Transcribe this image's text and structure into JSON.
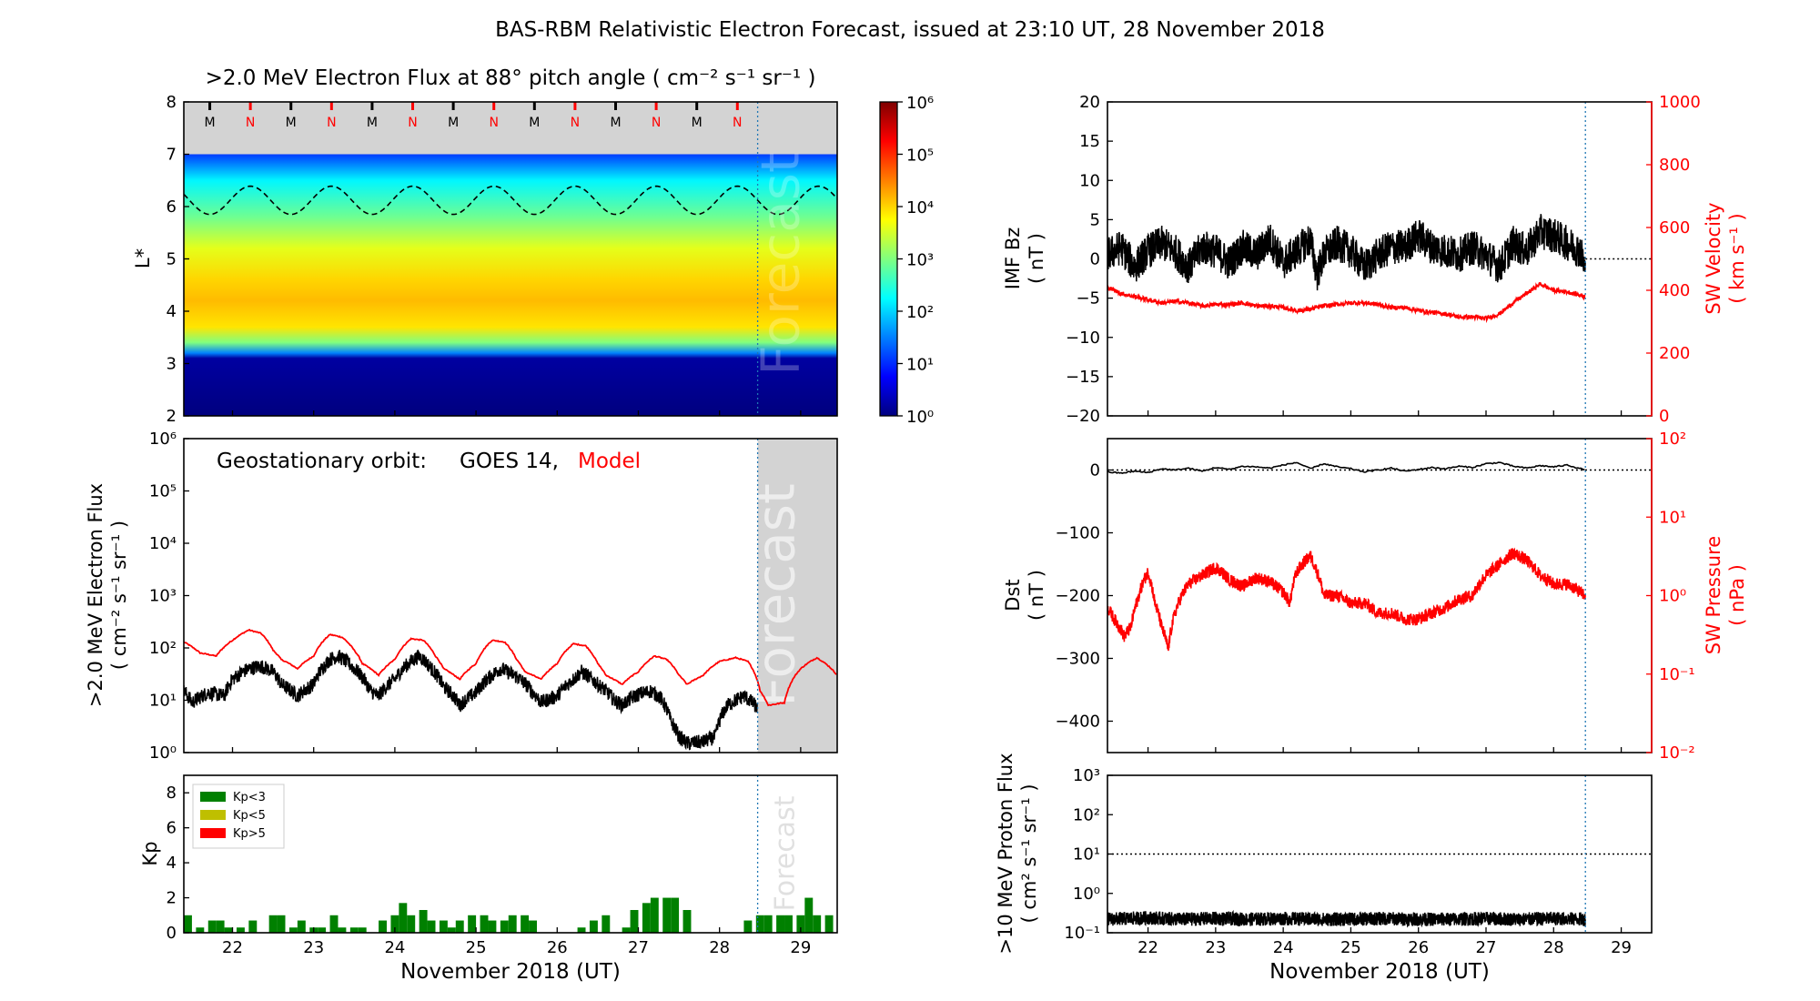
{
  "title": "BAS-RBM Relativistic Electron Forecast, issued at 23:10 UT, 28 November 2018",
  "colors": {
    "model": "#ff0000",
    "observed": "#000000",
    "kp_low": "#008000",
    "kp_mid": "#bfbf00",
    "kp_high": "#ff0000",
    "forecast_bg": "#d3d3d3",
    "vline": "#1f77b4"
  },
  "x_axis": {
    "ticks": [
      "22",
      "23",
      "24",
      "25",
      "26",
      "27",
      "28",
      "29"
    ],
    "xlabel": "November 2018 (UT)",
    "xlim": [
      21.4,
      29.45
    ],
    "issue_time": 28.47
  },
  "left_x_axis": {
    "xlim": [
      21.4,
      29.45
    ]
  },
  "right_x_axis": {
    "xlim": [
      21.4,
      29.45
    ]
  },
  "forecast_label": "Forecast",
  "chart_data": [
    {
      "id": "lstar_flux",
      "type": "heatmap",
      "title": ">2.0 MeV Electron Flux at 88° pitch angle ( cm⁻² s⁻¹ sr⁻¹ )",
      "ylabel": "L*",
      "ylim": [
        2,
        8
      ],
      "yticks": [
        "2",
        "3",
        "4",
        "5",
        "6",
        "7",
        "8"
      ],
      "colorbar": {
        "scale": "log",
        "range": [
          1,
          1000000
        ],
        "ticklabels": [
          "10⁰",
          "10¹",
          "10²",
          "10³",
          "10⁴",
          "10⁵",
          "10⁶"
        ]
      },
      "flux_profile": [
        {
          "L": 2.0,
          "log_flux": 0.0
        },
        {
          "L": 3.1,
          "log_flux": 0.2
        },
        {
          "L": 3.2,
          "log_flux": 1.5
        },
        {
          "L": 3.4,
          "log_flux": 3.0
        },
        {
          "L": 3.7,
          "log_flux": 3.9
        },
        {
          "L": 4.2,
          "log_flux": 4.15
        },
        {
          "L": 4.6,
          "log_flux": 4.0
        },
        {
          "L": 5.2,
          "log_flux": 3.6
        },
        {
          "L": 5.8,
          "log_flux": 2.9
        },
        {
          "L": 6.5,
          "log_flux": 2.2
        },
        {
          "L": 7.0,
          "log_flux": 1.1
        }
      ],
      "magnetopause_markers": {
        "labels": [
          "M",
          "N",
          "M",
          "N",
          "M",
          "N",
          "M",
          "N",
          "M",
          "N",
          "M",
          "N",
          "M",
          "N"
        ],
        "times": [
          21.72,
          22.22,
          22.72,
          23.22,
          23.72,
          24.22,
          24.72,
          25.22,
          25.72,
          26.22,
          26.72,
          27.22,
          27.72,
          28.22
        ],
        "colors": [
          "#000000",
          "#ff0000",
          "#000000",
          "#ff0000",
          "#000000",
          "#ff0000",
          "#000000",
          "#ff0000",
          "#000000",
          "#ff0000",
          "#000000",
          "#ff0000",
          "#000000",
          "#ff0000"
        ]
      },
      "geo_orbit_lstar": {
        "mean": 6.12,
        "amplitude": 0.27,
        "period_days": 1.0,
        "phase_day": 22.22
      }
    },
    {
      "id": "geo_flux",
      "type": "line",
      "ylabel": ">2.0 MeV Electron Flux ( cm⁻² s⁻¹ sr⁻¹ )",
      "yscale": "log",
      "ylim": [
        1,
        1000000
      ],
      "yticklabels": [
        "10⁰",
        "10¹",
        "10²",
        "10³",
        "10⁴",
        "10⁵",
        "10⁶"
      ],
      "legend": {
        "prefix": "Geostationary orbit:",
        "observed": "GOES 14,",
        "model": "Model"
      },
      "series": [
        {
          "name": "Model",
          "color": "#ff0000",
          "x": [
            21.4,
            21.6,
            21.8,
            22.0,
            22.2,
            22.35,
            22.5,
            22.6,
            22.8,
            23.0,
            23.2,
            23.35,
            23.5,
            23.6,
            23.8,
            24.0,
            24.2,
            24.35,
            24.5,
            24.6,
            24.8,
            25.0,
            25.2,
            25.35,
            25.5,
            25.6,
            25.8,
            26.0,
            26.2,
            26.35,
            26.5,
            26.6,
            26.8,
            27.0,
            27.2,
            27.35,
            27.5,
            27.6,
            27.8,
            28.0,
            28.2,
            28.35,
            28.5,
            28.6,
            28.8,
            29.0,
            29.2,
            29.45
          ],
          "values": [
            130,
            80,
            70,
            140,
            220,
            190,
            90,
            60,
            40,
            70,
            180,
            160,
            90,
            50,
            30,
            60,
            150,
            140,
            70,
            40,
            25,
            50,
            140,
            130,
            60,
            35,
            25,
            50,
            120,
            110,
            50,
            30,
            20,
            35,
            70,
            60,
            30,
            20,
            30,
            55,
            65,
            55,
            15,
            8,
            9,
            40,
            65,
            30
          ]
        },
        {
          "name": "GOES 14",
          "color": "#000000",
          "x": [
            21.4,
            21.5,
            21.7,
            21.9,
            22.0,
            22.2,
            22.35,
            22.5,
            22.6,
            22.8,
            23.0,
            23.2,
            23.3,
            23.5,
            23.7,
            23.8,
            24.0,
            24.2,
            24.3,
            24.45,
            24.6,
            24.8,
            25.0,
            25.2,
            25.3,
            25.5,
            25.7,
            25.8,
            26.0,
            26.2,
            26.3,
            26.5,
            26.7,
            26.8,
            27.0,
            27.15,
            27.25,
            27.4,
            27.5,
            27.6,
            27.8,
            27.95,
            28.1,
            28.3,
            28.47
          ],
          "values": [
            15,
            9,
            14,
            12,
            25,
            40,
            45,
            35,
            20,
            12,
            20,
            60,
            70,
            40,
            15,
            12,
            25,
            55,
            70,
            40,
            18,
            8,
            14,
            30,
            40,
            28,
            14,
            9,
            12,
            25,
            35,
            20,
            10,
            8,
            13,
            15,
            12,
            4,
            2,
            1.5,
            1.6,
            2,
            8,
            12,
            7
          ]
        }
      ]
    },
    {
      "id": "kp",
      "type": "bar",
      "ylabel": "Kp",
      "ylim": [
        0,
        9
      ],
      "yticks": [
        "0",
        "2",
        "4",
        "6",
        "8"
      ],
      "legend": [
        "Kp<3",
        "Kp<5",
        "Kp>5"
      ],
      "bar_width_days": 0.1,
      "x": [
        21.45,
        21.6,
        21.75,
        21.85,
        21.95,
        22.1,
        22.25,
        22.5,
        22.6,
        22.75,
        22.85,
        23.0,
        23.1,
        23.25,
        23.35,
        23.5,
        23.6,
        23.85,
        24.0,
        24.1,
        24.2,
        24.35,
        24.45,
        24.6,
        24.7,
        24.8,
        24.95,
        25.1,
        25.2,
        25.35,
        25.45,
        25.6,
        25.7,
        26.3,
        26.45,
        26.6,
        26.85,
        26.95,
        27.1,
        27.2,
        27.35,
        27.45,
        27.6,
        28.35,
        28.5,
        28.6,
        28.75,
        28.85,
        29.0,
        29.1,
        29.2,
        29.35
      ],
      "values": [
        1.0,
        0.3,
        0.7,
        0.7,
        0.3,
        0.3,
        0.7,
        1.0,
        1.0,
        0.3,
        0.7,
        0.3,
        0.3,
        1.0,
        0.3,
        0.3,
        0.3,
        0.7,
        1.0,
        1.7,
        1.0,
        1.3,
        0.7,
        0.7,
        0.3,
        0.7,
        1.0,
        1.0,
        0.7,
        0.7,
        1.0,
        1.0,
        0.7,
        0.3,
        0.7,
        1.0,
        0.3,
        1.3,
        1.7,
        2.0,
        2.0,
        2.0,
        1.3,
        0.7,
        1.0,
        1.0,
        1.0,
        1.0,
        1.0,
        2.0,
        1.0,
        1.0
      ]
    },
    {
      "id": "imf_sw",
      "type": "line",
      "ylabel": "IMF Bz ( nT )",
      "ylim": [
        -20,
        20
      ],
      "yticks": [
        "−20",
        "−15",
        "−10",
        "−5",
        "0",
        "5",
        "10",
        "15",
        "20"
      ],
      "y2label": "SW Velocity ( km s⁻¹ )",
      "y2lim": [
        0,
        1000
      ],
      "y2ticks": [
        "0",
        "200",
        "400",
        "600",
        "800",
        "1000"
      ],
      "series": [
        {
          "name": "IMF Bz",
          "color": "#000000",
          "x": [
            21.4,
            21.6,
            21.8,
            22.0,
            22.2,
            22.4,
            22.6,
            22.8,
            23.0,
            23.2,
            23.4,
            23.6,
            23.8,
            24.0,
            24.2,
            24.4,
            24.5,
            24.6,
            24.8,
            25.0,
            25.2,
            25.4,
            25.6,
            25.8,
            26.0,
            26.2,
            26.4,
            26.6,
            26.8,
            27.0,
            27.2,
            27.4,
            27.6,
            27.8,
            28.0,
            28.2,
            28.4,
            28.47
          ],
          "values": [
            0.5,
            1.5,
            -1.0,
            1.0,
            2.0,
            1.0,
            -1.0,
            1.5,
            1.0,
            -0.5,
            1.5,
            0.5,
            2.5,
            -0.5,
            1.0,
            2.5,
            -2.0,
            0.5,
            2.0,
            1.0,
            -1.0,
            0.5,
            1.5,
            1.5,
            3.0,
            1.5,
            1.0,
            0.5,
            1.5,
            0.5,
            -1.0,
            2.0,
            1.0,
            3.5,
            3.0,
            2.0,
            1.0,
            -1.5
          ]
        },
        {
          "name": "SW Velocity",
          "color": "#ff0000",
          "axis": "y2",
          "x": [
            21.4,
            21.6,
            21.8,
            22.0,
            22.2,
            22.4,
            22.6,
            22.8,
            23.0,
            23.2,
            23.4,
            23.6,
            23.8,
            24.0,
            24.2,
            24.4,
            24.6,
            24.8,
            25.0,
            25.2,
            25.4,
            25.6,
            25.8,
            26.0,
            26.2,
            26.4,
            26.6,
            26.8,
            27.0,
            27.2,
            27.4,
            27.6,
            27.8,
            28.0,
            28.2,
            28.47
          ],
          "values": [
            410,
            390,
            380,
            370,
            360,
            365,
            360,
            350,
            355,
            355,
            360,
            350,
            350,
            345,
            335,
            340,
            350,
            355,
            360,
            360,
            355,
            345,
            345,
            335,
            330,
            325,
            315,
            315,
            310,
            325,
            360,
            390,
            420,
            400,
            395,
            380
          ]
        }
      ]
    },
    {
      "id": "dst_pressure",
      "type": "line",
      "ylabel": "Dst ( nT )",
      "ylim": [
        -450,
        50
      ],
      "yticks": [
        "−400",
        "−300",
        "−200",
        "−100",
        "0"
      ],
      "y2label": "SW Pressure ( nPa )",
      "y2scale": "log",
      "y2lim": [
        0.01,
        100
      ],
      "y2ticks": [
        "10⁻²",
        "10⁻¹",
        "10⁰",
        "10¹",
        "10²"
      ],
      "series": [
        {
          "name": "Dst",
          "color": "#000000",
          "x": [
            21.4,
            21.6,
            21.8,
            22.0,
            22.2,
            22.4,
            22.6,
            22.8,
            23.0,
            23.2,
            23.4,
            23.6,
            23.8,
            24.0,
            24.2,
            24.4,
            24.6,
            24.8,
            25.0,
            25.2,
            25.4,
            25.6,
            25.8,
            26.0,
            26.2,
            26.4,
            26.6,
            26.8,
            27.0,
            27.2,
            27.4,
            27.6,
            27.8,
            28.0,
            28.2,
            28.47
          ],
          "values": [
            -3,
            -5,
            -2,
            -4,
            2,
            0,
            3,
            -2,
            4,
            1,
            6,
            5,
            3,
            8,
            12,
            2,
            10,
            5,
            2,
            -3,
            0,
            3,
            -2,
            1,
            4,
            2,
            6,
            4,
            10,
            12,
            6,
            3,
            7,
            5,
            8,
            0
          ]
        },
        {
          "name": "SW Pressure",
          "color": "#ff0000",
          "axis": "y2",
          "x": [
            21.4,
            21.5,
            21.65,
            21.75,
            21.85,
            22.0,
            22.1,
            22.2,
            22.3,
            22.4,
            22.6,
            22.8,
            23.0,
            23.2,
            23.4,
            23.6,
            23.8,
            24.0,
            24.1,
            24.2,
            24.4,
            24.5,
            24.6,
            24.8,
            25.0,
            25.2,
            25.4,
            25.6,
            25.8,
            26.0,
            26.2,
            26.4,
            26.6,
            26.8,
            27.0,
            27.2,
            27.4,
            27.6,
            27.8,
            28.0,
            28.2,
            28.47
          ],
          "values": [
            0.7,
            0.5,
            0.3,
            0.4,
            0.9,
            2.0,
            0.8,
            0.4,
            0.2,
            0.6,
            1.4,
            1.8,
            2.3,
            1.6,
            1.3,
            1.7,
            1.5,
            1.1,
            0.8,
            2.0,
            3.2,
            2.0,
            1.0,
            1.0,
            0.8,
            0.8,
            0.6,
            0.6,
            0.5,
            0.5,
            0.6,
            0.7,
            0.9,
            1.0,
            1.8,
            2.5,
            3.5,
            2.8,
            1.8,
            1.4,
            1.4,
            1.0
          ]
        }
      ]
    },
    {
      "id": "proton_flux",
      "type": "line",
      "ylabel": ">10 MeV Proton Flux ( cm² s⁻¹ sr⁻¹ )",
      "yscale": "log",
      "ylim": [
        0.1,
        1000
      ],
      "yticks": [
        "10⁻¹",
        "10⁰",
        "10¹",
        "10²",
        "10³"
      ],
      "threshold": 10,
      "series": [
        {
          "name": ">10 MeV Proton Flux",
          "color": "#000000",
          "x": [
            21.4,
            22.0,
            22.5,
            23.0,
            23.5,
            24.0,
            24.5,
            25.0,
            25.5,
            26.0,
            26.5,
            27.0,
            27.5,
            28.0,
            28.47
          ],
          "values": [
            0.22,
            0.24,
            0.22,
            0.23,
            0.22,
            0.23,
            0.22,
            0.22,
            0.23,
            0.22,
            0.22,
            0.23,
            0.22,
            0.23,
            0.22
          ]
        }
      ]
    }
  ]
}
